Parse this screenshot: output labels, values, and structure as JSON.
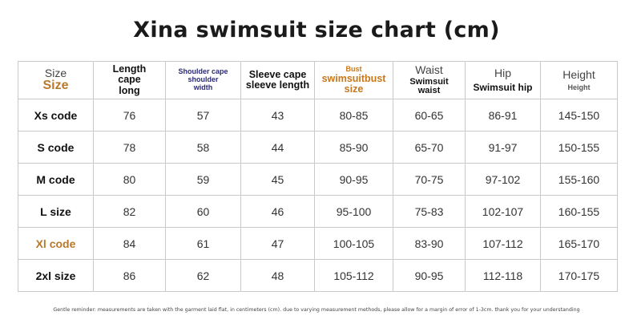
{
  "title": "Xina swimsuit size chart (cm)",
  "headers": {
    "size": {
      "line1": "Size",
      "line2": "Size"
    },
    "length": {
      "line1": "Length",
      "line2": "cape",
      "line3": "long"
    },
    "shoulder": {
      "line1": "Shoulder cape",
      "line2": "shoulder",
      "line3": "width"
    },
    "sleeve": {
      "line1": "Sleeve cape",
      "line2": "sleeve length"
    },
    "bust": {
      "line1": "Bust",
      "line2": "swimsuitbust",
      "line3": "size"
    },
    "waist": {
      "line1": "Waist",
      "line2": "Swimsuit",
      "line3": "waist"
    },
    "hip": {
      "line1": "Hip",
      "line2": "Swimsuit hip"
    },
    "height": {
      "line1": "Height",
      "line2": "Height"
    }
  },
  "rows": [
    {
      "label": "Xs code",
      "length": "76",
      "shoulder": "57",
      "sleeve": "43",
      "bust": "80-85",
      "waist": "60-65",
      "hip": "86-91",
      "height": "145-150"
    },
    {
      "label": "S code",
      "length": "78",
      "shoulder": "58",
      "sleeve": "44",
      "bust": "85-90",
      "waist": "65-70",
      "hip": "91-97",
      "height": "150-155"
    },
    {
      "label": "M code",
      "length": "80",
      "shoulder": "59",
      "sleeve": "45",
      "bust": "90-95",
      "waist": "70-75",
      "hip": "97-102",
      "height": "155-160"
    },
    {
      "label": "L size",
      "length": "82",
      "shoulder": "60",
      "sleeve": "46",
      "bust": "95-100",
      "waist": "75-83",
      "hip": "102-107",
      "height": "160-155"
    },
    {
      "label": "Xl code",
      "length": "84",
      "shoulder": "61",
      "sleeve": "47",
      "bust": "100-105",
      "waist": "83-90",
      "hip": "107-112",
      "height": "165-170"
    },
    {
      "label": "2xl size",
      "length": "86",
      "shoulder": "62",
      "sleeve": "48",
      "bust": "105-112",
      "waist": "90-95",
      "hip": "112-118",
      "height": "170-175"
    }
  ],
  "footnote": "Gentle reminder: measurements are taken with the garment laid flat, in centimeters (cm). due to varying measurement methods, please allow for a margin of error of 1-3cm. thank you for your understanding",
  "colors": {
    "accent_gold": "#b7782b",
    "grid": "#c9c9c9",
    "text": "#222222"
  }
}
